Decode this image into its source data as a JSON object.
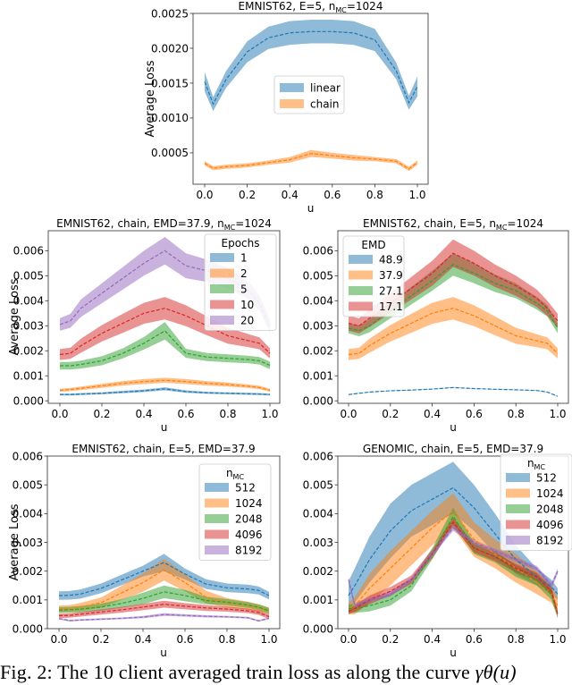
{
  "caption": {
    "text": "Fig. 2: The 10 client averaged train loss as along the curve ",
    "math": "γθ(u)"
  },
  "colors": {
    "blue": "#1f77b4",
    "orange": "#ff7f0e",
    "green": "#2ca02c",
    "red": "#d62728",
    "purple": "#9467bd"
  },
  "chart_data": [
    {
      "id": "top",
      "type": "line",
      "title": "EMNIST62, E=5, n_MC=1024",
      "xlabel": "u",
      "ylabel": "Average Loss",
      "xlim": [
        0,
        1
      ],
      "ylim": [
        5e-05,
        0.0025
      ],
      "xticks": [
        "0.0",
        "0.2",
        "0.4",
        "0.6",
        "0.8",
        "1.0"
      ],
      "yticks": [
        "0.0005",
        "0.0010",
        "0.0015",
        "0.0020",
        "0.0025"
      ],
      "legend": {
        "title": "",
        "position": "center"
      },
      "x": [
        0,
        0.04,
        0.1,
        0.2,
        0.3,
        0.4,
        0.5,
        0.6,
        0.7,
        0.8,
        0.9,
        0.96,
        1.0
      ],
      "series": [
        {
          "name": "linear",
          "color": "blue",
          "mean": [
            0.00152,
            0.0012,
            0.00155,
            0.00195,
            0.00215,
            0.00222,
            0.00224,
            0.00224,
            0.00222,
            0.00212,
            0.00168,
            0.00122,
            0.00145
          ],
          "band": [
            0.00014,
            0.0001,
            0.00012,
            0.00015,
            0.00016,
            0.00017,
            0.00017,
            0.00017,
            0.00017,
            0.00016,
            0.00012,
            0.0001,
            0.00014
          ]
        },
        {
          "name": "chain",
          "color": "orange",
          "mean": [
            0.00035,
            0.00028,
            0.0003,
            0.00032,
            0.00036,
            0.0004,
            0.00049,
            0.00046,
            0.00043,
            0.00041,
            0.00038,
            0.00027,
            0.00036
          ],
          "band": [
            3e-05,
            3e-05,
            3e-05,
            3e-05,
            3e-05,
            4e-05,
            5e-05,
            4e-05,
            4e-05,
            3e-05,
            3e-05,
            3e-05,
            3e-05
          ]
        }
      ]
    },
    {
      "id": "mid-left",
      "type": "line",
      "title": "EMNIST62, chain, EMD=37.9, n_MC=1024",
      "xlabel": "u",
      "ylabel": "Average Loss",
      "xlim": [
        0,
        1
      ],
      "ylim": [
        -0.0001,
        0.0068
      ],
      "xticks": [
        "0.0",
        "0.2",
        "0.4",
        "0.6",
        "0.8",
        "1.0"
      ],
      "yticks": [
        "0.000",
        "0.001",
        "0.002",
        "0.003",
        "0.004",
        "0.005",
        "0.006"
      ],
      "legend": {
        "title": "Epochs",
        "position": "top-right"
      },
      "x": [
        0,
        0.05,
        0.1,
        0.2,
        0.3,
        0.4,
        0.5,
        0.6,
        0.7,
        0.8,
        0.9,
        0.95,
        1.0
      ],
      "series": [
        {
          "name": "1",
          "color": "blue",
          "mean": [
            0.00025,
            0.00025,
            0.00027,
            0.0003,
            0.00035,
            0.0004,
            0.00048,
            0.00037,
            0.00032,
            0.0003,
            0.00028,
            0.00027,
            0.00025
          ],
          "band": [
            4e-05,
            4e-05,
            4e-05,
            4e-05,
            5e-05,
            5e-05,
            6e-05,
            5e-05,
            4e-05,
            4e-05,
            4e-05,
            4e-05,
            4e-05
          ]
        },
        {
          "name": "2",
          "color": "orange",
          "mean": [
            0.00042,
            0.00045,
            0.0005,
            0.0006,
            0.0007,
            0.00077,
            0.00082,
            0.00077,
            0.0007,
            0.00065,
            0.00058,
            0.00053,
            0.00042
          ],
          "band": [
            6e-05,
            6e-05,
            7e-05,
            8e-05,
            9e-05,
            0.0001,
            0.0001,
            0.0001,
            9e-05,
            8e-05,
            7e-05,
            7e-05,
            6e-05
          ]
        },
        {
          "name": "5",
          "color": "green",
          "mean": [
            0.0014,
            0.0014,
            0.00145,
            0.0016,
            0.0019,
            0.0023,
            0.0028,
            0.0019,
            0.00175,
            0.0017,
            0.00165,
            0.0016,
            0.00142
          ],
          "band": [
            0.00015,
            0.00015,
            0.00016,
            0.00018,
            0.0002,
            0.00025,
            0.00035,
            0.00018,
            0.00016,
            0.00016,
            0.00015,
            0.00015,
            0.00015
          ]
        },
        {
          "name": "10",
          "color": "red",
          "mean": [
            0.00185,
            0.0019,
            0.0022,
            0.0027,
            0.0031,
            0.0035,
            0.0037,
            0.0034,
            0.003,
            0.0026,
            0.0024,
            0.0023,
            0.0019
          ],
          "band": [
            0.00022,
            0.00022,
            0.00028,
            0.00033,
            0.00038,
            0.00042,
            0.00045,
            0.00042,
            0.00038,
            0.00032,
            0.00026,
            0.00024,
            0.0002
          ]
        },
        {
          "name": "20",
          "color": "purple",
          "mean": [
            0.00305,
            0.0032,
            0.0037,
            0.0043,
            0.0049,
            0.0055,
            0.006,
            0.0054,
            0.0052,
            0.0049,
            0.0044,
            0.0039,
            0.003
          ],
          "band": [
            0.00025,
            0.00028,
            0.00035,
            0.0004,
            0.00045,
            0.0005,
            0.00055,
            0.0005,
            0.00045,
            0.0004,
            0.00035,
            0.0003,
            0.00025
          ]
        }
      ]
    },
    {
      "id": "mid-right",
      "type": "line",
      "title": "EMNIST62, chain, E=5, n_MC=1024",
      "xlabel": "u",
      "ylabel": "",
      "xlim": [
        0,
        1
      ],
      "ylim": [
        -0.0001,
        0.0068
      ],
      "xticks": [
        "0.0",
        "0.2",
        "0.4",
        "0.6",
        "0.8",
        "1.0"
      ],
      "yticks": [
        "0.000",
        "0.001",
        "0.002",
        "0.003",
        "0.004",
        "0.005",
        "0.006"
      ],
      "legend": {
        "title": "EMD",
        "position": "top-left"
      },
      "x": [
        0,
        0.05,
        0.1,
        0.2,
        0.3,
        0.4,
        0.5,
        0.6,
        0.7,
        0.8,
        0.9,
        0.95,
        1.0
      ],
      "series": [
        {
          "name": "48.9",
          "color": "blue",
          "mean": [
            0.00025,
            0.0003,
            0.00035,
            0.0004,
            0.00043,
            0.00047,
            0.00053,
            0.00049,
            0.00046,
            0.00044,
            0.00041,
            0.00035,
            0.00018
          ],
          "band": [
            1e-05,
            1e-05,
            1e-05,
            1e-05,
            1e-05,
            1e-05,
            1e-05,
            1e-05,
            1e-05,
            1e-05,
            1e-05,
            1e-05,
            1e-05
          ]
        },
        {
          "name": "37.9",
          "color": "orange",
          "mean": [
            0.00185,
            0.0019,
            0.0022,
            0.0027,
            0.0031,
            0.0035,
            0.0037,
            0.0034,
            0.003,
            0.0026,
            0.0024,
            0.0023,
            0.0019
          ],
          "band": [
            0.00022,
            0.00022,
            0.00028,
            0.00033,
            0.00038,
            0.00042,
            0.00045,
            0.00042,
            0.00038,
            0.00032,
            0.00026,
            0.00024,
            0.0002
          ]
        },
        {
          "name": "27.1",
          "color": "green",
          "mean": [
            0.0029,
            0.0028,
            0.003,
            0.0036,
            0.0042,
            0.0048,
            0.00545,
            0.0051,
            0.0047,
            0.0044,
            0.0039,
            0.0036,
            0.0029
          ],
          "band": [
            0.0002,
            0.00022,
            0.00026,
            0.0003,
            0.00035,
            0.0004,
            0.00045,
            0.0004,
            0.00035,
            0.0003,
            0.00025,
            0.00023,
            0.0002
          ]
        },
        {
          "name": "17.1",
          "color": "red",
          "mean": [
            0.0031,
            0.003,
            0.0033,
            0.0039,
            0.0045,
            0.0051,
            0.0059,
            0.0055,
            0.005,
            0.0046,
            0.0041,
            0.0037,
            0.0032
          ],
          "band": [
            0.0003,
            0.0003,
            0.00035,
            0.0004,
            0.00045,
            0.0005,
            0.00055,
            0.0005,
            0.00045,
            0.0004,
            0.00035,
            0.0003,
            0.00028
          ]
        }
      ]
    },
    {
      "id": "bot-left",
      "type": "line",
      "title": "EMNIST62, chain, E=5, EMD=37.9",
      "xlabel": "u",
      "ylabel": "Average Loss",
      "xlim": [
        0,
        1
      ],
      "ylim": [
        0,
        0.006
      ],
      "xticks": [
        "0.0",
        "0.2",
        "0.4",
        "0.6",
        "0.8",
        "1.0"
      ],
      "yticks": [
        "0.000",
        "0.001",
        "0.002",
        "0.003",
        "0.004",
        "0.005",
        "0.006"
      ],
      "legend": {
        "title": "n_MC",
        "position": "top-right"
      },
      "x": [
        0,
        0.05,
        0.1,
        0.2,
        0.3,
        0.4,
        0.5,
        0.6,
        0.7,
        0.8,
        0.9,
        0.95,
        1.0
      ],
      "series": [
        {
          "name": "512",
          "color": "blue",
          "mean": [
            0.00115,
            0.00116,
            0.0012,
            0.0014,
            0.0017,
            0.002,
            0.0023,
            0.0019,
            0.00155,
            0.00142,
            0.00138,
            0.00133,
            0.00115
          ],
          "band": [
            0.00015,
            0.00015,
            0.00016,
            0.00017,
            0.00018,
            0.00019,
            0.0003,
            0.00019,
            0.00017,
            0.00015,
            0.00015,
            0.00014,
            0.00013
          ]
        },
        {
          "name": "1024",
          "color": "orange",
          "mean": [
            0.00068,
            0.0007,
            0.00075,
            0.0009,
            0.00125,
            0.0016,
            0.00205,
            0.0016,
            0.0011,
            0.0009,
            0.0008,
            0.00072,
            0.00062
          ],
          "band": [
            0.00012,
            0.00012,
            0.00014,
            0.00018,
            0.00025,
            0.00032,
            0.00038,
            0.0003,
            0.00022,
            0.00016,
            0.00014,
            0.00013,
            0.00012
          ]
        },
        {
          "name": "2048",
          "color": "green",
          "mean": [
            0.00065,
            0.00066,
            0.00068,
            0.00075,
            0.00088,
            0.00105,
            0.00128,
            0.00115,
            0.00098,
            0.00092,
            0.00082,
            0.00075,
            0.00062
          ],
          "band": [
            0.0001,
            0.0001,
            0.00011,
            0.00012,
            0.00015,
            0.0002,
            0.00022,
            0.0002,
            0.00013,
            0.00011,
            0.0001,
            0.0001,
            0.0001
          ]
        },
        {
          "name": "4096",
          "color": "red",
          "mean": [
            0.00045,
            0.00046,
            0.0005,
            0.00058,
            0.00066,
            0.00075,
            0.00085,
            0.00078,
            0.00072,
            0.00068,
            0.00062,
            0.00056,
            0.00042
          ],
          "band": [
            8e-05,
            8e-05,
            8e-05,
            9e-05,
            0.0001,
            0.00011,
            0.00012,
            0.00011,
            0.0001,
            9e-05,
            8e-05,
            8e-05,
            8e-05
          ]
        },
        {
          "name": "8192",
          "color": "purple",
          "mean": [
            0.00035,
            0.00028,
            0.0003,
            0.00033,
            0.00036,
            0.0004,
            0.00049,
            0.00046,
            0.00043,
            0.00041,
            0.00038,
            0.00027,
            0.00036
          ],
          "band": [
            3e-05,
            3e-05,
            3e-05,
            3e-05,
            3e-05,
            4e-05,
            5e-05,
            4e-05,
            4e-05,
            3e-05,
            3e-05,
            3e-05,
            3e-05
          ]
        }
      ]
    },
    {
      "id": "bot-right",
      "type": "line",
      "title": "GENOMIC, chain, E=5, EMD=37.9",
      "xlabel": "u",
      "ylabel": "",
      "xlim": [
        0,
        1
      ],
      "ylim": [
        0,
        0.006
      ],
      "xticks": [
        "0.0",
        "0.2",
        "0.4",
        "0.6",
        "0.8",
        "1.0"
      ],
      "yticks": [
        "0.000",
        "0.001",
        "0.002",
        "0.003",
        "0.004",
        "0.005",
        "0.006"
      ],
      "legend": {
        "title": "n_MC",
        "position": "top-right"
      },
      "x": [
        0,
        0.03,
        0.1,
        0.2,
        0.3,
        0.4,
        0.5,
        0.6,
        0.7,
        0.8,
        0.9,
        0.97,
        1.0
      ],
      "series": [
        {
          "name": "512",
          "color": "blue",
          "mean": [
            0.00115,
            0.0015,
            0.0024,
            0.0034,
            0.0041,
            0.0045,
            0.0049,
            0.0042,
            0.0033,
            0.0024,
            0.0018,
            0.00145,
            0.0012
          ],
          "band": [
            0.0005,
            0.0006,
            0.0008,
            0.00095,
            0.0009,
            0.0009,
            0.0009,
            0.0008,
            0.0007,
            0.0005,
            0.0003,
            0.00025,
            0.0002
          ]
        },
        {
          "name": "1024",
          "color": "orange",
          "mean": [
            0.0007,
            0.0008,
            0.0014,
            0.0021,
            0.0028,
            0.0035,
            0.0041,
            0.0031,
            0.0026,
            0.0021,
            0.0016,
            0.0012,
            0.0008
          ],
          "band": [
            0.0002,
            0.0003,
            0.0005,
            0.0006,
            0.0006,
            0.0006,
            0.0006,
            0.0006,
            0.0005,
            0.0005,
            0.0004,
            0.0003,
            0.0003
          ]
        },
        {
          "name": "2048",
          "color": "green",
          "mean": [
            0.0007,
            0.0007,
            0.0008,
            0.001,
            0.0015,
            0.0026,
            0.0039,
            0.0028,
            0.0025,
            0.002,
            0.0017,
            0.0012,
            0.0005
          ],
          "band": [
            0.00015,
            0.00015,
            0.0002,
            0.0002,
            0.0002,
            0.0002,
            0.0003,
            0.0002,
            0.0002,
            0.0002,
            0.0002,
            0.0002,
            0.00015
          ]
        },
        {
          "name": "4096",
          "color": "red",
          "mean": [
            0.0006,
            0.0007,
            0.001,
            0.0013,
            0.0017,
            0.0026,
            0.0037,
            0.0028,
            0.0025,
            0.0021,
            0.0018,
            0.0013,
            0.0005
          ],
          "band": [
            0.0001,
            0.00012,
            0.00015,
            0.00015,
            0.00015,
            0.00015,
            0.00015,
            0.00015,
            0.00015,
            0.00015,
            0.00015,
            0.00015,
            0.0001
          ]
        },
        {
          "name": "8192",
          "color": "purple",
          "mean": [
            0.0017,
            0.0008,
            0.001,
            0.0012,
            0.0017,
            0.0026,
            0.0035,
            0.003,
            0.0027,
            0.0024,
            0.0021,
            0.0015,
            0.002
          ],
          "band": [
            0.0001,
            0.0001,
            8e-05,
            8e-05,
            8e-05,
            8e-05,
            0.0001,
            8e-05,
            8e-05,
            8e-05,
            8e-05,
            0.0001,
            0.0001
          ]
        }
      ]
    }
  ]
}
